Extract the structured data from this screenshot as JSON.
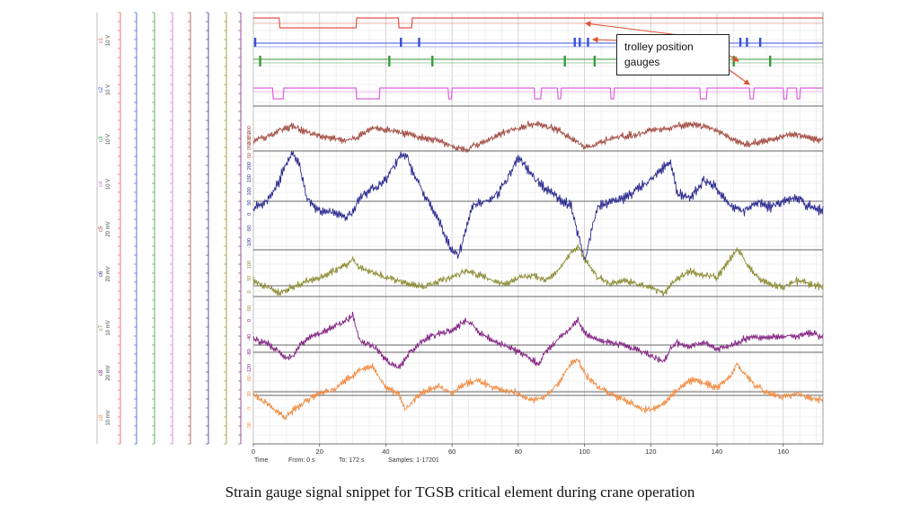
{
  "caption": "Strain gauge signal snippet for TGSB critical element during crane operation",
  "callout": {
    "line1": "trolley position",
    "line2": "gauges"
  },
  "footer": {
    "time": "Time",
    "from": "From: 0 s",
    "to": "To: 172 s",
    "samples": "Samples: 1-17201"
  },
  "colors": {
    "red": "#e8504a",
    "blue": "#3a50d8",
    "green": "#3a9a3a",
    "magenta": "#e060e0",
    "brown": "#a04a40",
    "navy": "#2a2a90",
    "olive": "#8a8a30",
    "purple": "#802080",
    "orange": "#f08a40"
  },
  "chart_data": {
    "type": "line",
    "title": "",
    "xlabel": "Time",
    "xlim": [
      0,
      172
    ],
    "x_ticks": [
      0,
      20,
      40,
      60,
      80,
      100,
      120,
      140,
      160
    ],
    "grid": true,
    "channels": [
      {
        "id": "c1",
        "label": "c1\n10 V",
        "color": "#e8504a",
        "kind": "digital",
        "low_intervals": [
          [
            8,
            31
          ],
          [
            44,
            48
          ]
        ]
      },
      {
        "id": "c2",
        "label": "c2\n10 V",
        "color": "#3a50d8",
        "kind": "pulses",
        "pulses": [
          0.5,
          44.5,
          50,
          97,
          98.5,
          101,
          147,
          149,
          153
        ]
      },
      {
        "id": "c3",
        "label": "c3\n10 V",
        "color": "#3a9a3a",
        "kind": "pulses",
        "pulses": [
          2,
          41,
          54,
          94,
          103,
          145,
          156
        ]
      },
      {
        "id": "c4",
        "label": "c4\n10 V",
        "color": "#e060e0",
        "kind": "digital",
        "low_intervals": [
          [
            6,
            9
          ],
          [
            31,
            38
          ],
          [
            59,
            60
          ],
          [
            85,
            87
          ],
          [
            92,
            93
          ],
          [
            108,
            109
          ],
          [
            135,
            137
          ],
          [
            150,
            151
          ],
          [
            160,
            161
          ],
          [
            164,
            165
          ]
        ]
      },
      {
        "id": "c5",
        "label": "c5\n20 mV",
        "color": "#a04a40",
        "kind": "analog",
        "ticks": [
          "200",
          "150",
          "100",
          "50",
          "0",
          "-50"
        ],
        "x": [
          0,
          4,
          8,
          12,
          16,
          20,
          24,
          28,
          32,
          36,
          40,
          44,
          48,
          52,
          56,
          60,
          64,
          68,
          72,
          76,
          80,
          84,
          88,
          92,
          96,
          100,
          104,
          108,
          112,
          116,
          120,
          124,
          128,
          132,
          136,
          140,
          144,
          148,
          152,
          156,
          160,
          164,
          168,
          172
        ],
        "y": [
          0,
          10,
          25,
          35,
          20,
          10,
          5,
          0,
          10,
          30,
          25,
          20,
          10,
          5,
          0,
          -15,
          -25,
          -10,
          5,
          20,
          30,
          40,
          35,
          25,
          5,
          -20,
          -10,
          5,
          10,
          15,
          25,
          30,
          35,
          40,
          35,
          25,
          5,
          -10,
          -5,
          0,
          10,
          15,
          5,
          0
        ]
      },
      {
        "id": "c6",
        "label": "c6\n20 mV",
        "color": "#2a2a90",
        "kind": "analog",
        "ticks": [
          "200",
          "150",
          "100",
          "50",
          "0",
          "-50",
          "-100"
        ],
        "x": [
          0,
          4,
          8,
          10,
          12,
          14,
          16,
          20,
          24,
          28,
          30,
          32,
          36,
          40,
          44,
          46,
          48,
          52,
          56,
          60,
          62,
          66,
          70,
          74,
          78,
          80,
          84,
          88,
          92,
          96,
          98,
          100,
          104,
          108,
          112,
          116,
          120,
          124,
          126,
          128,
          132,
          136,
          140,
          144,
          148,
          152,
          156,
          160,
          164,
          168,
          172
        ],
        "y": [
          0,
          10,
          60,
          100,
          120,
          90,
          20,
          -10,
          -15,
          -25,
          -10,
          20,
          40,
          60,
          110,
          120,
          80,
          20,
          -30,
          -100,
          -110,
          0,
          10,
          30,
          80,
          110,
          70,
          40,
          20,
          0,
          -60,
          -120,
          0,
          10,
          20,
          40,
          60,
          90,
          100,
          30,
          20,
          60,
          40,
          0,
          -10,
          10,
          0,
          10,
          20,
          0,
          -10
        ]
      },
      {
        "id": "c7",
        "label": "c7\n10 mV",
        "color": "#8a8a30",
        "kind": "analog",
        "ticks": [
          "100",
          "50",
          "0",
          "-50"
        ],
        "x": [
          0,
          4,
          8,
          12,
          16,
          20,
          24,
          28,
          30,
          32,
          36,
          40,
          44,
          48,
          52,
          56,
          60,
          64,
          68,
          72,
          76,
          80,
          84,
          88,
          92,
          96,
          98,
          100,
          104,
          108,
          112,
          116,
          120,
          124,
          128,
          132,
          136,
          140,
          144,
          146,
          148,
          152,
          156,
          160,
          164,
          168,
          172
        ],
        "y": [
          5,
          -5,
          -15,
          -5,
          5,
          10,
          20,
          30,
          40,
          25,
          20,
          10,
          5,
          0,
          -5,
          5,
          10,
          20,
          15,
          5,
          0,
          10,
          15,
          5,
          20,
          50,
          60,
          40,
          10,
          0,
          5,
          0,
          -5,
          -15,
          10,
          20,
          15,
          10,
          40,
          55,
          40,
          10,
          0,
          -5,
          5,
          0,
          -5
        ]
      },
      {
        "id": "c8",
        "label": "c8\n20 mV",
        "color": "#802080",
        "kind": "analog",
        "ticks": [
          "0",
          "-40",
          "-80",
          "-120"
        ],
        "x": [
          0,
          4,
          8,
          10,
          12,
          14,
          16,
          20,
          24,
          28,
          30,
          32,
          36,
          40,
          42,
          44,
          46,
          48,
          52,
          56,
          60,
          64,
          66,
          68,
          72,
          76,
          80,
          84,
          86,
          88,
          92,
          96,
          98,
          100,
          104,
          108,
          112,
          116,
          120,
          124,
          126,
          128,
          132,
          136,
          140,
          144,
          148,
          152,
          156,
          160,
          164,
          168,
          172
        ],
        "y": [
          0,
          -5,
          -20,
          -30,
          -25,
          -10,
          0,
          10,
          20,
          30,
          40,
          0,
          -10,
          -30,
          -40,
          -45,
          -30,
          -15,
          0,
          10,
          15,
          30,
          25,
          10,
          0,
          -10,
          -20,
          -30,
          -40,
          -20,
          0,
          20,
          30,
          10,
          0,
          -5,
          -10,
          -15,
          -25,
          -35,
          -15,
          -5,
          -10,
          -5,
          -15,
          -10,
          0,
          5,
          5,
          5,
          5,
          10,
          5
        ]
      },
      {
        "id": "c9",
        "label": "c9\n10 mV",
        "color": "#f08a40",
        "kind": "analog",
        "ticks": [
          "60",
          "30",
          "0",
          "-30"
        ],
        "x": [
          0,
          4,
          8,
          10,
          12,
          16,
          20,
          24,
          28,
          32,
          36,
          40,
          44,
          46,
          48,
          52,
          56,
          60,
          64,
          68,
          72,
          76,
          80,
          84,
          88,
          92,
          96,
          98,
          100,
          104,
          108,
          112,
          116,
          120,
          124,
          128,
          132,
          136,
          140,
          144,
          146,
          148,
          152,
          156,
          160,
          164,
          168,
          172
        ],
        "y": [
          0,
          -15,
          -30,
          -35,
          -25,
          -10,
          0,
          5,
          20,
          35,
          40,
          10,
          0,
          -25,
          -10,
          5,
          10,
          0,
          15,
          20,
          10,
          5,
          0,
          -10,
          -5,
          15,
          45,
          50,
          30,
          10,
          0,
          -10,
          -20,
          -25,
          -15,
          5,
          20,
          15,
          10,
          25,
          45,
          30,
          10,
          0,
          -5,
          0,
          -5,
          -10
        ]
      }
    ]
  }
}
